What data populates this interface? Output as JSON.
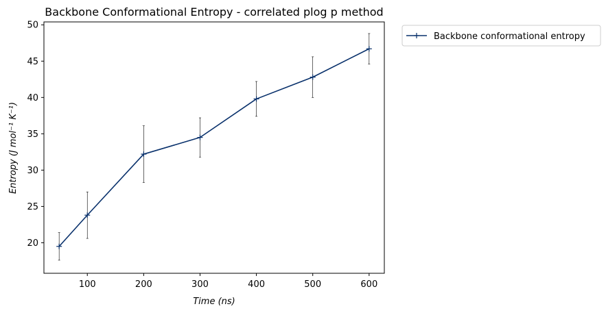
{
  "chart_data": {
    "type": "line",
    "title": "Backbone Conformational Entropy - correlated plog p method",
    "xlabel_main": "Time",
    "xlabel_unit": "(ns)",
    "ylabel_main": "Entropy",
    "ylabel_unit": "(J mol⁻¹ K⁻¹)",
    "x": [
      50,
      100,
      200,
      300,
      400,
      500,
      600
    ],
    "xlim": [
      23,
      627
    ],
    "ylim": [
      15.8,
      50.4
    ],
    "xticks": [
      100,
      200,
      300,
      400,
      500,
      600
    ],
    "yticks": [
      20,
      25,
      30,
      35,
      40,
      45,
      50
    ],
    "grid": false,
    "legend_position": "outside-top-right",
    "series": [
      {
        "name": "Backbone conformational entropy",
        "color": "#08306b",
        "marker": "+",
        "values": [
          19.5,
          23.8,
          32.2,
          34.5,
          39.8,
          42.8,
          46.7
        ],
        "error": [
          1.9,
          3.2,
          3.9,
          2.7,
          2.4,
          2.8,
          2.1
        ]
      }
    ]
  }
}
